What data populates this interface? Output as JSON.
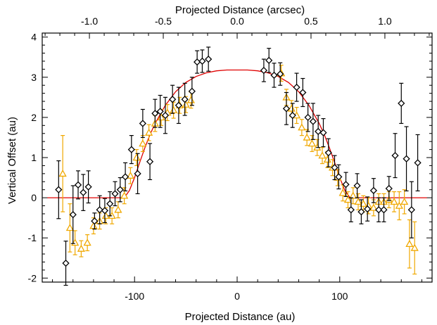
{
  "chart_data": {
    "type": "scatter",
    "xlabel": "Projected Distance (au)",
    "xlabel_top": "Projected Distance (arcsec)",
    "ylabel": "Vertical Offset (au)",
    "xlim": [
      -190,
      190
    ],
    "ylim": [
      -2.1,
      4.1
    ],
    "xticks": [
      -100,
      0,
      100
    ],
    "xtick_labels": [
      "-100",
      "0",
      "100"
    ],
    "top_ticks_arcsec": [
      -1.0,
      -0.5,
      0.0,
      0.5,
      1.0
    ],
    "top_tick_labels": [
      "-1.0",
      "-0.5",
      "0.0",
      "0.5",
      "1.0"
    ],
    "au_per_arcsec": 144,
    "yticks": [
      -2,
      -1,
      0,
      1,
      2,
      3,
      4
    ],
    "ytick_labels": [
      "-2",
      "-1",
      "0",
      "1",
      "2",
      "3",
      "4"
    ],
    "grid": false,
    "colors": {
      "black_series": "#000000",
      "orange_series": "#f0a800",
      "model": "#e00000"
    },
    "series": [
      {
        "marker": "diamond",
        "color": "#000000",
        "points": [
          {
            "x": -174,
            "y": 0.2,
            "err": 0.72
          },
          {
            "x": -167,
            "y": -1.63,
            "err": 0.55
          },
          {
            "x": -160,
            "y": -0.42,
            "err": 0.72
          },
          {
            "x": -155,
            "y": 0.32,
            "err": 0.35
          },
          {
            "x": -150,
            "y": 0.13,
            "err": 0.45
          },
          {
            "x": -145,
            "y": 0.27,
            "err": 0.4
          },
          {
            "x": -139,
            "y": -0.58,
            "err": 0.2
          },
          {
            "x": -134,
            "y": -0.3,
            "err": 0.35
          },
          {
            "x": -129,
            "y": -0.32,
            "err": 0.3
          },
          {
            "x": -124,
            "y": -0.15,
            "err": 0.3
          },
          {
            "x": -119,
            "y": 0.1,
            "err": 0.3
          },
          {
            "x": -114,
            "y": 0.2,
            "err": 0.3
          },
          {
            "x": -109,
            "y": 0.52,
            "err": 0.35
          },
          {
            "x": -103,
            "y": 1.2,
            "err": 0.35
          },
          {
            "x": -97,
            "y": 0.6,
            "err": 0.5
          },
          {
            "x": -92,
            "y": 1.85,
            "err": 0.35
          },
          {
            "x": -85,
            "y": 0.9,
            "err": 0.45
          },
          {
            "x": -80,
            "y": 2.1,
            "err": 0.35
          },
          {
            "x": -75,
            "y": 2.15,
            "err": 0.4
          },
          {
            "x": -70,
            "y": 2.05,
            "err": 0.45
          },
          {
            "x": -63,
            "y": 2.45,
            "err": 0.35
          },
          {
            "x": -57,
            "y": 2.3,
            "err": 0.45
          },
          {
            "x": -51,
            "y": 2.45,
            "err": 0.4
          },
          {
            "x": -44,
            "y": 2.65,
            "err": 0.35
          },
          {
            "x": -39,
            "y": 3.38,
            "err": 0.28
          },
          {
            "x": -34,
            "y": 3.4,
            "err": 0.28
          },
          {
            "x": -28,
            "y": 3.45,
            "err": 0.3
          },
          {
            "x": 26,
            "y": 3.17,
            "err": 0.28
          },
          {
            "x": 31,
            "y": 3.42,
            "err": 0.3
          },
          {
            "x": 36,
            "y": 3.05,
            "err": 0.3
          },
          {
            "x": 42,
            "y": 3.08,
            "err": 0.28
          },
          {
            "x": 48,
            "y": 2.22,
            "err": 0.4
          },
          {
            "x": 54,
            "y": 2.05,
            "err": 0.3
          },
          {
            "x": 58,
            "y": 2.75,
            "err": 0.35
          },
          {
            "x": 64,
            "y": 2.62,
            "err": 0.35
          },
          {
            "x": 69,
            "y": 2.0,
            "err": 0.35
          },
          {
            "x": 74,
            "y": 1.9,
            "err": 0.45
          },
          {
            "x": 79,
            "y": 1.65,
            "err": 0.4
          },
          {
            "x": 84,
            "y": 1.62,
            "err": 0.35
          },
          {
            "x": 89,
            "y": 1.12,
            "err": 0.35
          },
          {
            "x": 95,
            "y": 0.75,
            "err": 0.3
          },
          {
            "x": 99,
            "y": 0.52,
            "err": 0.3
          },
          {
            "x": 106,
            "y": 0.33,
            "err": 0.3
          },
          {
            "x": 111,
            "y": -0.3,
            "err": 0.3
          },
          {
            "x": 117,
            "y": 0.3,
            "err": 0.3
          },
          {
            "x": 121,
            "y": -0.35,
            "err": 0.3
          },
          {
            "x": 127,
            "y": -0.28,
            "err": 0.3
          },
          {
            "x": 133,
            "y": 0.18,
            "err": 0.3
          },
          {
            "x": 138,
            "y": -0.3,
            "err": 0.3
          },
          {
            "x": 143,
            "y": -0.3,
            "err": 0.3
          },
          {
            "x": 148,
            "y": 0.23,
            "err": 0.3
          },
          {
            "x": 154,
            "y": 1.05,
            "err": 0.55
          },
          {
            "x": 160,
            "y": 2.35,
            "err": 0.5
          },
          {
            "x": 165,
            "y": 0.97,
            "err": 0.8
          },
          {
            "x": 170,
            "y": -0.3,
            "err": 0.7
          },
          {
            "x": 176,
            "y": 0.87,
            "err": 0.7
          }
        ]
      },
      {
        "marker": "triangle",
        "color": "#f0a800",
        "points": [
          {
            "x": -170,
            "y": 0.6,
            "err": 0.95
          },
          {
            "x": -163,
            "y": -0.75,
            "err": 0.6
          },
          {
            "x": -158,
            "y": -1.12,
            "err": 0.3
          },
          {
            "x": -152,
            "y": -1.27,
            "err": 0.2
          },
          {
            "x": -146,
            "y": -1.12,
            "err": 0.2
          },
          {
            "x": -140,
            "y": -0.7,
            "err": 0.2
          },
          {
            "x": -134,
            "y": -0.58,
            "err": 0.2
          },
          {
            "x": -128,
            "y": -0.45,
            "err": 0.2
          },
          {
            "x": -122,
            "y": -0.45,
            "err": 0.2
          },
          {
            "x": -116,
            "y": -0.3,
            "err": 0.2
          },
          {
            "x": -110,
            "y": 0.05,
            "err": 0.2
          },
          {
            "x": -104,
            "y": 0.55,
            "err": 0.2
          },
          {
            "x": -98,
            "y": 1.0,
            "err": 0.2
          },
          {
            "x": -92,
            "y": 1.35,
            "err": 0.2
          },
          {
            "x": -86,
            "y": 1.62,
            "err": 0.2
          },
          {
            "x": -80,
            "y": 1.85,
            "err": 0.2
          },
          {
            "x": -74,
            "y": 2.0,
            "err": 0.2
          },
          {
            "x": -68,
            "y": 2.12,
            "err": 0.2
          },
          {
            "x": -62,
            "y": 2.18,
            "err": 0.2
          },
          {
            "x": -56,
            "y": 2.3,
            "err": 0.2
          },
          {
            "x": -50,
            "y": 2.32,
            "err": 0.2
          },
          {
            "x": -45,
            "y": 2.43,
            "err": 0.2
          },
          {
            "x": 43,
            "y": 3.1,
            "err": 0.2
          },
          {
            "x": 48,
            "y": 2.5,
            "err": 0.2
          },
          {
            "x": 53,
            "y": 2.22,
            "err": 0.2
          },
          {
            "x": 58,
            "y": 2.05,
            "err": 0.2
          },
          {
            "x": 63,
            "y": 1.75,
            "err": 0.2
          },
          {
            "x": 68,
            "y": 1.5,
            "err": 0.2
          },
          {
            "x": 73,
            "y": 1.35,
            "err": 0.2
          },
          {
            "x": 78,
            "y": 1.25,
            "err": 0.2
          },
          {
            "x": 83,
            "y": 1.05,
            "err": 0.2
          },
          {
            "x": 88,
            "y": 0.95,
            "err": 0.2
          },
          {
            "x": 93,
            "y": 0.75,
            "err": 0.2
          },
          {
            "x": 98,
            "y": 0.5,
            "err": 0.2
          },
          {
            "x": 103,
            "y": 0.12,
            "err": 0.2
          },
          {
            "x": 108,
            "y": -0.05,
            "err": 0.2
          },
          {
            "x": 113,
            "y": 0.05,
            "err": 0.2
          },
          {
            "x": 118,
            "y": -0.1,
            "err": 0.2
          },
          {
            "x": 123,
            "y": -0.15,
            "err": 0.2
          },
          {
            "x": 128,
            "y": -0.2,
            "err": 0.2
          },
          {
            "x": 133,
            "y": -0.25,
            "err": 0.2
          },
          {
            "x": 138,
            "y": -0.1,
            "err": 0.2
          },
          {
            "x": 143,
            "y": -0.1,
            "err": 0.2
          },
          {
            "x": 148,
            "y": -0.05,
            "err": 0.2
          },
          {
            "x": 153,
            "y": -0.1,
            "err": 0.25
          },
          {
            "x": 158,
            "y": -0.2,
            "err": 0.35
          },
          {
            "x": 163,
            "y": -0.1,
            "err": 0.3
          },
          {
            "x": 168,
            "y": -1.15,
            "err": 0.6
          },
          {
            "x": 173,
            "y": -1.25,
            "err": 0.65
          }
        ]
      }
    ],
    "model_curve": {
      "color": "#e00000",
      "x": [
        -185,
        -110,
        -105,
        -100,
        -95,
        -90,
        -85,
        -80,
        -70,
        -60,
        -50,
        -40,
        -30,
        -20,
        -10,
        0,
        10,
        20,
        30,
        40,
        50,
        60,
        70,
        80,
        85,
        90,
        95,
        100,
        105,
        110,
        185
      ],
      "y": [
        0,
        0,
        0.18,
        0.5,
        0.88,
        1.24,
        1.57,
        1.85,
        2.3,
        2.64,
        2.87,
        3.02,
        3.11,
        3.16,
        3.18,
        3.18,
        3.18,
        3.16,
        3.11,
        3.02,
        2.87,
        2.64,
        2.3,
        1.85,
        1.57,
        1.24,
        0.88,
        0.5,
        0.18,
        0,
        0
      ]
    }
  }
}
